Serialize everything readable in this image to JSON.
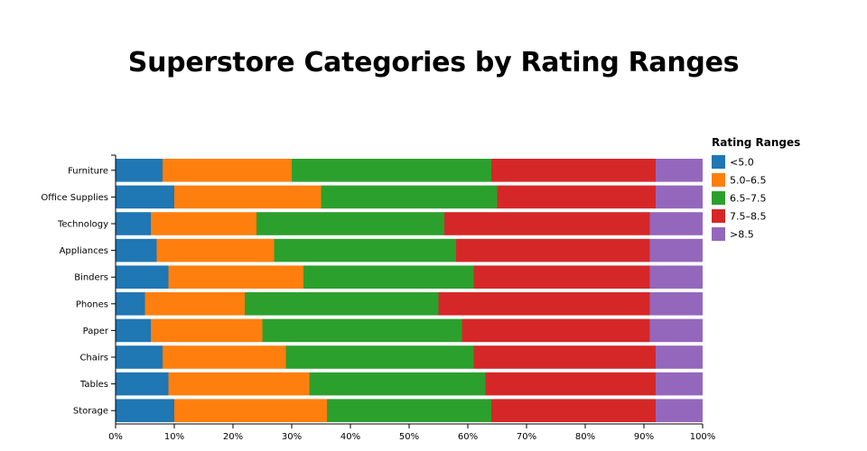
{
  "chart_data": {
    "type": "bar",
    "orientation": "horizontal",
    "stacked": true,
    "normalized": true,
    "title": "Superstore Categories by Rating Ranges",
    "categories": [
      "Furniture",
      "Office Supplies",
      "Technology",
      "Appliances",
      "Binders",
      "Phones",
      "Paper",
      "Chairs",
      "Tables",
      "Storage"
    ],
    "series": [
      {
        "name": "<5.0",
        "color": "#1f77b4",
        "values": [
          8,
          10,
          6,
          7,
          9,
          5,
          6,
          8,
          9,
          10
        ]
      },
      {
        "name": "5.0–6.5",
        "color": "#ff7f0e",
        "values": [
          22,
          25,
          18,
          20,
          23,
          17,
          19,
          21,
          24,
          26
        ]
      },
      {
        "name": "6.5–7.5",
        "color": "#2ca02c",
        "values": [
          34,
          30,
          32,
          31,
          29,
          33,
          34,
          32,
          30,
          28
        ]
      },
      {
        "name": "7.5–8.5",
        "color": "#d62728",
        "values": [
          28,
          27,
          35,
          33,
          30,
          36,
          32,
          31,
          29,
          28
        ]
      },
      {
        "name": ">8.5",
        "color": "#9467bd",
        "values": [
          8,
          8,
          9,
          9,
          9,
          9,
          9,
          8,
          8,
          8
        ]
      }
    ],
    "x_ticks": [
      "0%",
      "10%",
      "20%",
      "30%",
      "40%",
      "50%",
      "60%",
      "70%",
      "80%",
      "90%",
      "100%"
    ],
    "xlim": [
      0,
      100
    ],
    "legend": {
      "title": "Rating Ranges",
      "position": "right-top"
    },
    "grid": false
  }
}
